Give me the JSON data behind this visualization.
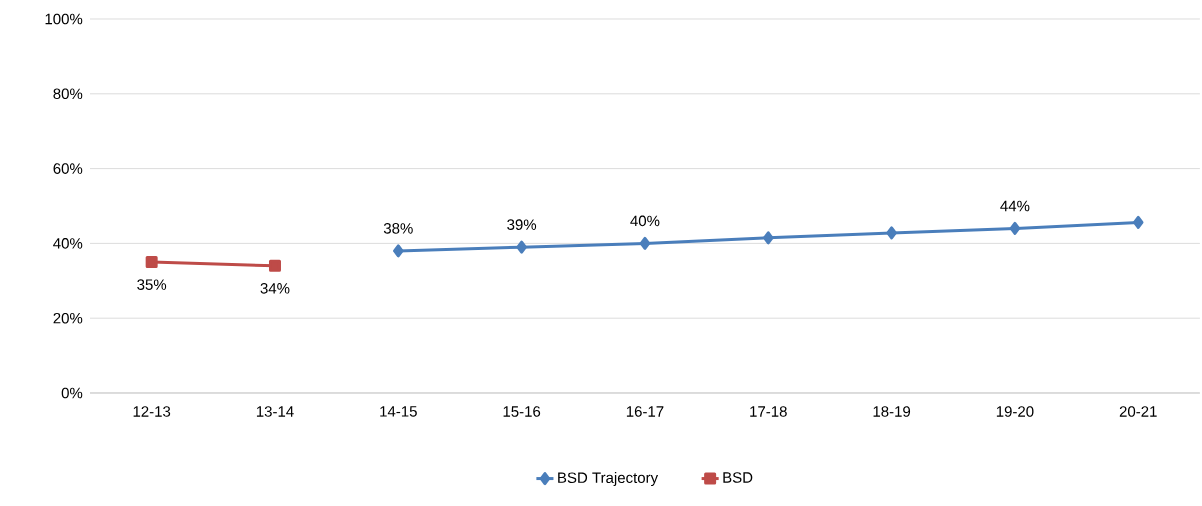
{
  "chart_data": {
    "type": "line",
    "categories": [
      "12-13",
      "13-14",
      "14-15",
      "15-16",
      "16-17",
      "17-18",
      "18-19",
      "19-20",
      "20-21"
    ],
    "series": [
      {
        "name": "BSD Trajectory",
        "color": "#4a7ebb",
        "marker": "diamond",
        "values": [
          null,
          null,
          38,
          39,
          40,
          41.5,
          42.8,
          44,
          45.6
        ],
        "value_labels": [
          null,
          null,
          "38%",
          "39%",
          "40%",
          null,
          null,
          "44%",
          null
        ]
      },
      {
        "name": "BSD",
        "color": "#be4b48",
        "marker": "square",
        "values": [
          35,
          34,
          null,
          null,
          null,
          null,
          null,
          null,
          null
        ],
        "value_labels": [
          "35%",
          "34%",
          null,
          null,
          null,
          null,
          null,
          null,
          null
        ]
      }
    ],
    "ylim": [
      0,
      100
    ],
    "yticks": [
      {
        "value": 0,
        "label": "0%"
      },
      {
        "value": 20,
        "label": "20%"
      },
      {
        "value": 40,
        "label": "40%"
      },
      {
        "value": 60,
        "label": "60%"
      },
      {
        "value": 80,
        "label": "80%"
      },
      {
        "value": 100,
        "label": "100%"
      }
    ],
    "grid": "y",
    "legend": "bottom",
    "line_style": "solid"
  }
}
